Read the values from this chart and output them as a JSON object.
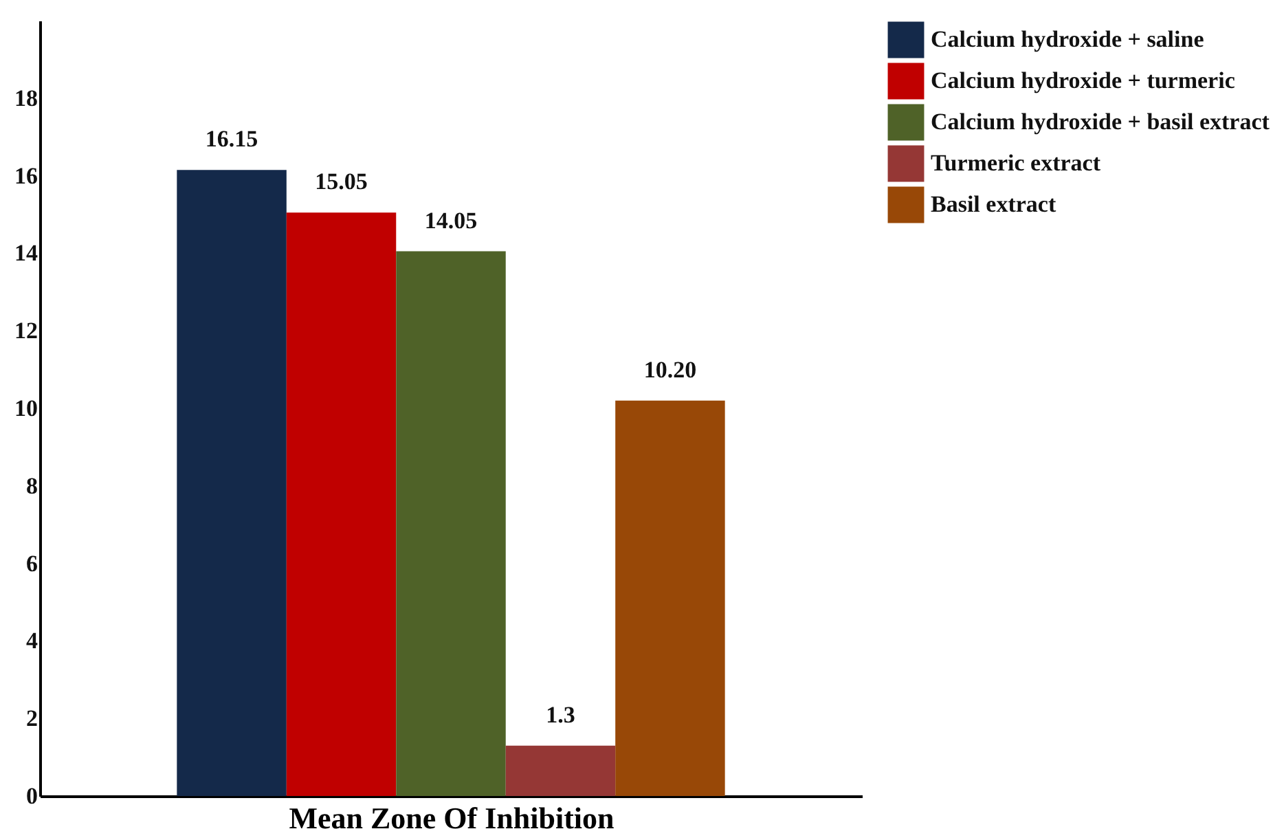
{
  "chart_data": {
    "type": "bar",
    "categories": [
      null
    ],
    "xlabel": "Mean Zone Of Inhibition",
    "series": [
      {
        "name": "Calcium hydroxide + saline",
        "color": "#14294a",
        "values": [
          16.15
        ],
        "value_labels": [
          "16.15"
        ]
      },
      {
        "name": "Calcium hydroxide + turmeric",
        "color": "#c00000",
        "values": [
          15.05
        ],
        "value_labels": [
          "15.05"
        ]
      },
      {
        "name": "Calcium hydroxide + basil extract",
        "color": "#4f6228",
        "values": [
          14.05
        ],
        "value_labels": [
          "14.05"
        ]
      },
      {
        "name": "Turmeric extract",
        "color": "#953735",
        "values": [
          1.3
        ],
        "value_labels": [
          "1.3"
        ]
      },
      {
        "name": "Basil extract",
        "color": "#984807",
        "values": [
          10.2
        ],
        "value_labels": [
          "10.20"
        ]
      }
    ],
    "ylim": [
      0,
      20
    ],
    "yticks": [
      0,
      2,
      4,
      6,
      8,
      10,
      12,
      14,
      16,
      18
    ],
    "grid": false,
    "legend": "top right"
  }
}
